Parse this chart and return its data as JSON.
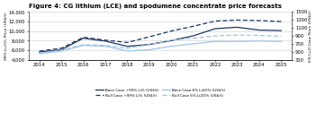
{
  "title": "Figure 4: CG lithium (LCE) and spodumene concentrate price forecasts",
  "years": [
    2014,
    2015,
    2016,
    2017,
    2018,
    2019,
    2020,
    2021,
    2022,
    2023,
    2024,
    2025
  ],
  "base_case_99": [
    5600,
    6100,
    8500,
    7900,
    6800,
    7200,
    8000,
    9000,
    10500,
    10800,
    10200,
    10100
  ],
  "bull_case_99": [
    5800,
    6400,
    8700,
    8100,
    7600,
    8800,
    10000,
    11000,
    12100,
    12300,
    12200,
    12000
  ],
  "base_case_6": [
    450,
    520,
    660,
    640,
    520,
    550,
    640,
    700,
    760,
    760,
    770,
    760
  ],
  "bull_case_6": [
    470,
    540,
    680,
    660,
    590,
    680,
    790,
    840,
    900,
    920,
    910,
    890
  ],
  "ylim_left": [
    4000,
    14000
  ],
  "ylim_right": [
    300,
    1500
  ],
  "yticks_left": [
    4000,
    6000,
    8000,
    10000,
    12000,
    14000
  ],
  "yticks_right": [
    300,
    500,
    700,
    900,
    1100,
    1300,
    1500
  ],
  "ylabel_left": "99% Li₂CO₃ Price (US$/t)",
  "ylabel_right": "6% Li₂O Conc Price (US$/t)",
  "color_dark_blue": "#1a3560",
  "color_light_blue": "#9dc3e6",
  "legend_items": [
    "Base Case +99% Li% (US$/t)",
    "Bull Case +99% Li% (US$/t)",
    "Base Case 6% Li2O% (US$/t)",
    "Bull Case 6% Li2O% (US$/t)"
  ],
  "background_color": "#ffffff",
  "grid_color": "#cccccc"
}
